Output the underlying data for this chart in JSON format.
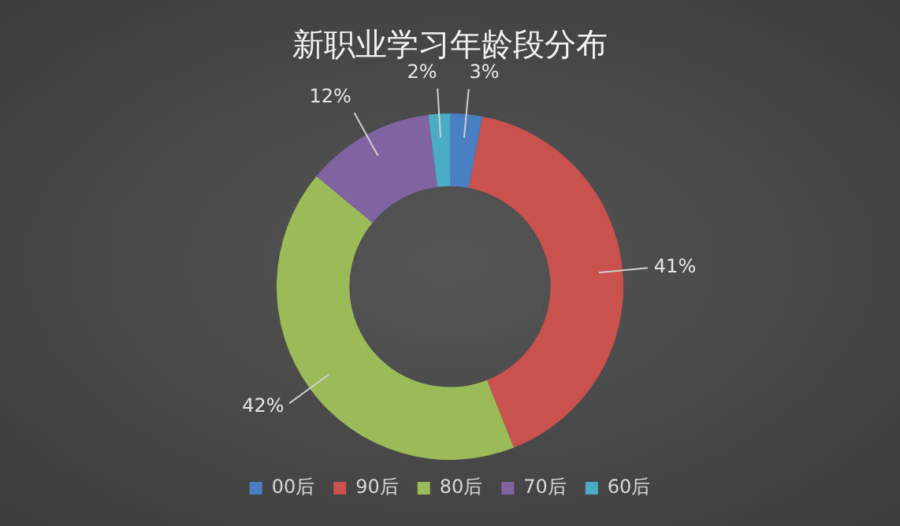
{
  "chart_data": {
    "type": "donut",
    "title": "新职业学习年龄段分布",
    "categories": [
      "00后",
      "90后",
      "80后",
      "70后",
      "60后"
    ],
    "values": [
      3,
      41,
      42,
      12,
      2
    ],
    "value_labels": [
      "3%",
      "41%",
      "42%",
      "12%",
      "2%"
    ],
    "colors": [
      "#4a7fc4",
      "#c9524f",
      "#9bbb59",
      "#8064a2",
      "#4bacc6"
    ],
    "legend": "bottom"
  }
}
